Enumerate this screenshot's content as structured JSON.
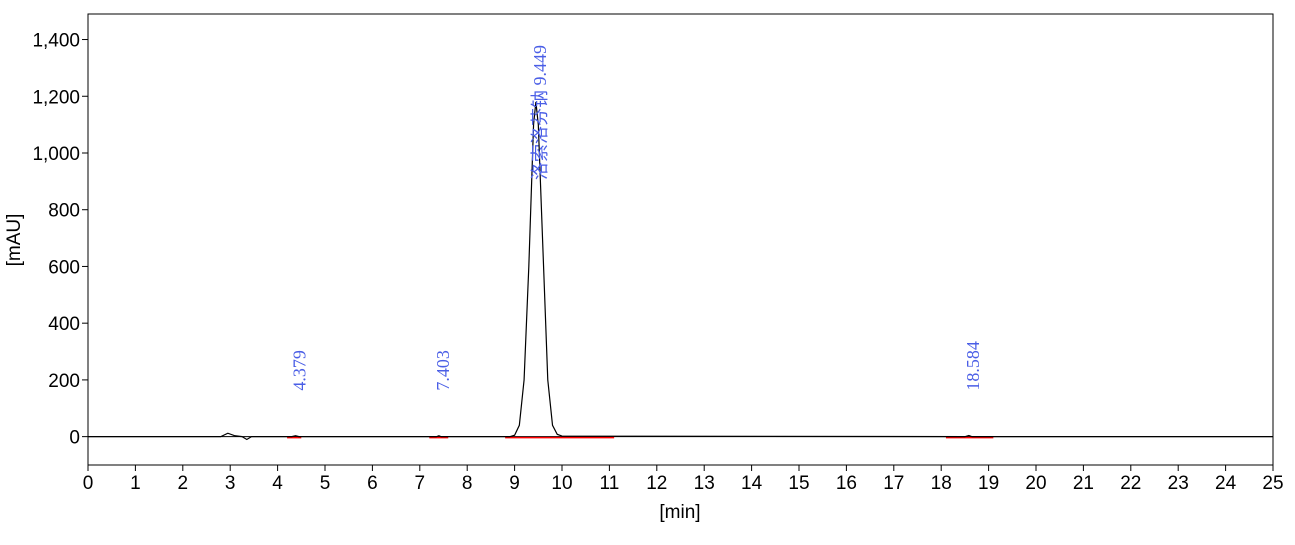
{
  "chart_data": {
    "type": "line",
    "x_label": "[min]",
    "y_label": "[mAU]",
    "xlim": [
      0,
      25
    ],
    "ylim": [
      -100,
      1490
    ],
    "xticks": [
      0,
      1,
      2,
      3,
      4,
      5,
      6,
      7,
      8,
      9,
      10,
      11,
      12,
      13,
      14,
      15,
      16,
      17,
      18,
      19,
      20,
      21,
      22,
      23,
      24,
      25
    ],
    "yticks": [
      0,
      200,
      400,
      600,
      800,
      {
        "value": 1000,
        "label": "1,000"
      },
      {
        "value": 1200,
        "label": "1,200"
      },
      {
        "value": 1400,
        "label": "1,400"
      }
    ],
    "series": [
      {
        "color": "#000000",
        "x": [
          0,
          2.8,
          2.95,
          3.1,
          3.25,
          3.35,
          3.45,
          4.3,
          4.379,
          4.45,
          7.35,
          7.403,
          7.45,
          8.9,
          9.0,
          9.1,
          9.2,
          9.3,
          9.4,
          9.449,
          9.5,
          9.6,
          9.7,
          9.8,
          9.9,
          10.0,
          18.5,
          18.584,
          18.65,
          25
        ],
        "values": [
          0,
          0,
          12,
          3,
          0,
          -10,
          0,
          0,
          3,
          0,
          0,
          3,
          0,
          0,
          5,
          40,
          200,
          600,
          1100,
          1180,
          1100,
          650,
          200,
          40,
          8,
          2,
          0,
          4,
          0,
          0
        ]
      }
    ],
    "baselines": [
      [
        4.2,
        4.5
      ],
      [
        7.2,
        7.6
      ],
      [
        8.8,
        11.1
      ],
      [
        18.1,
        19.1
      ]
    ],
    "baseline_color": "#ff0000",
    "annotation_color": "#4a5ee6",
    "annotations": [
      {
        "text": "4.379",
        "x": 4.379
      },
      {
        "text": "7.403",
        "x": 7.403
      },
      {
        "text": "洛索洛芬钠 9.449",
        "x": 9.449
      },
      {
        "text": "18.584",
        "x": 18.584
      }
    ]
  }
}
